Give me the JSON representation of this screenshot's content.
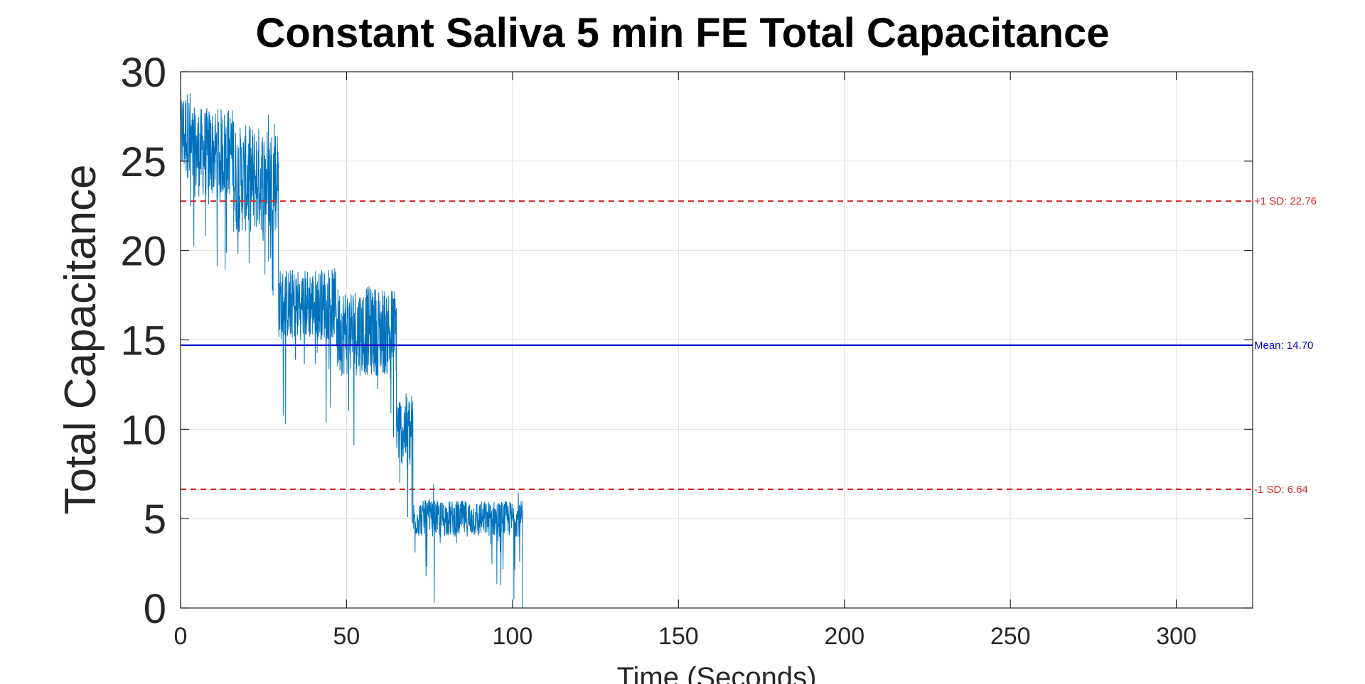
{
  "chart_data": {
    "type": "line",
    "title": "Constant Saliva 5 min FE Total Capacitance",
    "xlabel": "Time (Seconds)",
    "ylabel": "Total Capacitance",
    "xlim": [
      0,
      323
    ],
    "ylim": [
      0,
      30
    ],
    "xticks": [
      0,
      50,
      100,
      150,
      200,
      250,
      300
    ],
    "yticks": [
      0,
      5,
      10,
      15,
      20,
      25,
      30
    ],
    "grid": true,
    "series_color": "#0072BD",
    "series": [
      {
        "segments": [
          {
            "x0": 0,
            "x1": 3,
            "center": 26.5,
            "band": [
              24,
              29
            ],
            "spike_range": [
              22,
              30
            ]
          },
          {
            "x0": 3,
            "x1": 16,
            "center": 25,
            "band": [
              23,
              28
            ],
            "spike_range": [
              18,
              28
            ]
          },
          {
            "x0": 16,
            "x1": 29.5,
            "center": 24.5,
            "band": [
              21,
              27
            ],
            "spike_range": [
              17,
              28
            ]
          },
          {
            "x0": 29.5,
            "x1": 47,
            "center": 17,
            "band": [
              15,
              19
            ],
            "spike_range": [
              10,
              19
            ]
          },
          {
            "x0": 47,
            "x1": 65,
            "center": 15.5,
            "band": [
              13,
              18
            ],
            "spike_range": [
              9,
              18
            ]
          },
          {
            "x0": 65,
            "x1": 70,
            "center": 10,
            "band": [
              8,
              12
            ],
            "spike_range": [
              4,
              12
            ]
          },
          {
            "x0": 70,
            "x1": 103,
            "center": 5,
            "band": [
              4,
              6
            ],
            "spike_range": [
              0,
              7
            ]
          },
          {
            "x0": 103,
            "x1": 323,
            "center": 0,
            "band": [
              0,
              0
            ],
            "spike_range": [
              0,
              0
            ]
          }
        ]
      }
    ],
    "reference_lines": [
      {
        "label": "+1 SD: 22.76",
        "value": 22.76,
        "color": "#d62728",
        "style": "dashed"
      },
      {
        "label": "Mean: 14.70",
        "value": 14.7,
        "color": "#0000cc",
        "style": "solid"
      },
      {
        "label": "-1 SD: 6.64",
        "value": 6.64,
        "color": "#d62728",
        "style": "dashed"
      }
    ]
  }
}
